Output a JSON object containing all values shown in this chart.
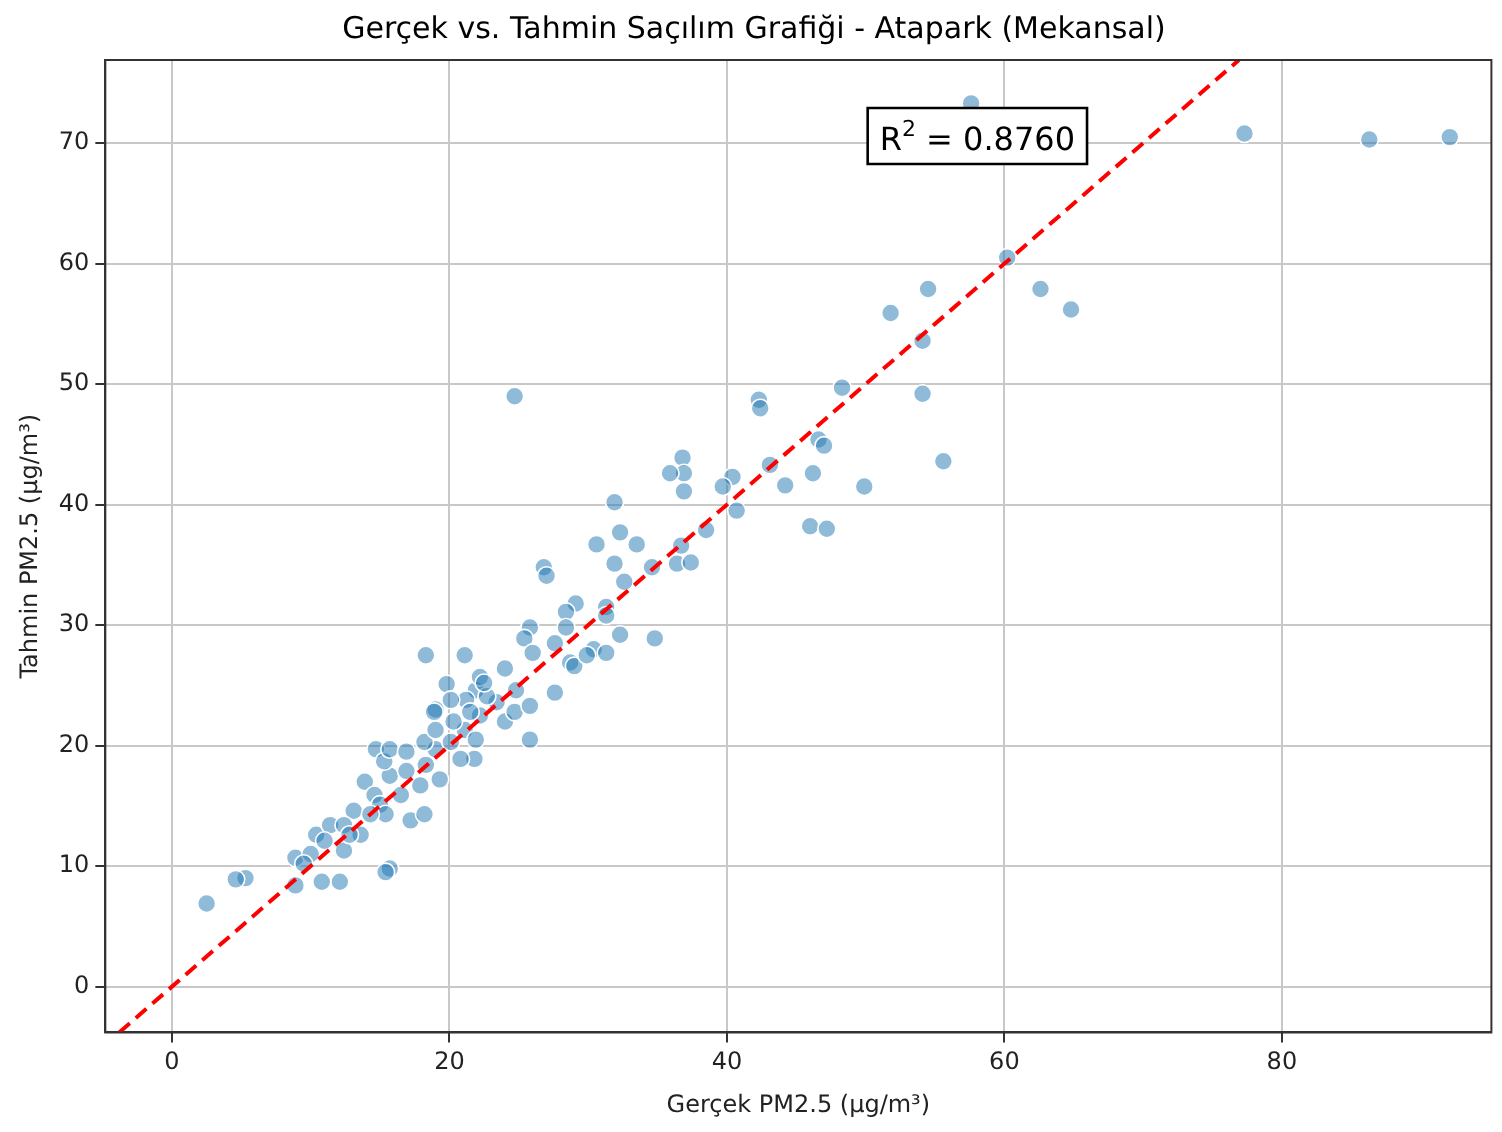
{
  "chart_data": {
    "type": "scatter",
    "title": "Gerçek vs. Tahmin Saçılım Grafiği - Atapark (Mekansal)",
    "xlabel": "Gerçek PM2.5 (µg/m³)",
    "ylabel": "Tahmin PM2.5 (µg/m³)",
    "annotations": [
      "R$^{2}$ = 0.8760"
    ],
    "xlim": [
      -4.8,
      95.1
    ],
    "ylim": [
      -3.8,
      76.9
    ],
    "xticks": [
      0,
      20,
      40,
      60,
      80
    ],
    "yticks": [
      0,
      10,
      20,
      30,
      40,
      50,
      60,
      70
    ],
    "grid": true,
    "marker": "circle",
    "series": [
      {
        "color": "#1f77b4",
        "x": [
          57.6,
          77.3,
          86.3,
          92.1,
          60.2,
          54.5,
          62.6,
          51.8,
          64.8,
          54.1,
          48.3,
          24.7,
          54.1,
          42.3,
          42.4,
          46.6,
          47.0,
          55.6,
          36.8,
          36.9,
          35.9,
          36.9,
          40.4,
          39.7,
          43.1,
          44.2,
          46.2,
          49.9,
          40.7,
          38.5,
          46.0,
          47.2,
          36.7,
          31.9,
          32.3,
          33.5,
          30.6,
          31.9,
          36.4,
          37.4,
          34.6,
          32.6,
          26.8,
          27.0,
          31.3,
          31.3,
          29.1,
          28.4,
          28.4,
          25.8,
          25.4,
          32.3,
          34.8,
          30.4,
          31.3,
          28.7,
          27.6,
          26.0,
          18.3,
          21.1,
          24.0,
          27.6,
          19.8,
          19.0,
          29.0,
          29.9,
          25.8,
          21.8,
          18.9,
          14.7,
          13.9,
          17.2,
          15.7,
          15.4,
          12.1,
          10.8,
          8.9,
          5.3,
          4.6,
          2.5,
          8.9,
          10.4,
          11.4,
          12.4,
          13.1,
          14.6,
          15.7,
          16.9,
          18.3,
          19.0,
          20.1,
          21.1,
          22.2,
          23.4,
          24.8,
          21.9,
          22.2,
          22.7,
          20.8,
          19.3,
          17.9,
          16.5,
          15.0,
          13.6,
          12.4,
          11.0,
          10.0,
          9.5,
          12.8,
          18.2,
          15.4,
          14.3,
          15.3,
          15.7,
          16.9,
          18.2,
          19.0,
          20.3,
          21.2,
          24.0,
          24.7,
          25.8,
          21.9,
          21.5,
          20.1,
          22.5
        ],
        "values": [
          73.3,
          70.8,
          70.3,
          70.5,
          60.5,
          57.9,
          57.9,
          55.9,
          56.2,
          53.6,
          49.7,
          49.0,
          49.2,
          48.7,
          48.0,
          45.4,
          44.9,
          43.6,
          43.9,
          42.6,
          42.6,
          41.1,
          42.3,
          41.5,
          43.3,
          41.6,
          42.6,
          41.5,
          39.5,
          37.9,
          38.2,
          38.0,
          36.6,
          40.2,
          37.7,
          36.7,
          36.7,
          35.1,
          35.1,
          35.2,
          34.8,
          33.6,
          34.8,
          34.1,
          31.5,
          30.8,
          31.8,
          31.1,
          29.8,
          29.8,
          28.9,
          29.2,
          28.9,
          28.0,
          27.7,
          26.9,
          28.5,
          27.7,
          27.5,
          27.5,
          26.4,
          24.4,
          25.1,
          23.0,
          26.6,
          27.5,
          20.5,
          18.9,
          22.8,
          19.7,
          17.0,
          13.8,
          9.8,
          9.5,
          8.7,
          8.7,
          8.4,
          9.0,
          8.9,
          6.9,
          10.7,
          12.6,
          13.4,
          11.3,
          14.6,
          15.9,
          17.5,
          17.9,
          18.4,
          19.7,
          20.3,
          21.3,
          22.5,
          23.6,
          24.6,
          24.6,
          25.7,
          24.1,
          18.9,
          17.2,
          16.7,
          15.9,
          15.1,
          12.6,
          13.4,
          12.1,
          11.0,
          10.2,
          12.6,
          14.3,
          14.3,
          14.3,
          18.7,
          19.7,
          19.5,
          20.3,
          21.3,
          22.0,
          23.8,
          22.0,
          22.8,
          23.3,
          20.5,
          22.8,
          23.8,
          25.2
        ]
      },
      {
        "type": "line",
        "color": "#ff0000",
        "line_style": "dashed",
        "marker": "none",
        "x": [
          -3.8,
          76.9
        ],
        "values": [
          -3.8,
          76.9
        ]
      }
    ]
  }
}
